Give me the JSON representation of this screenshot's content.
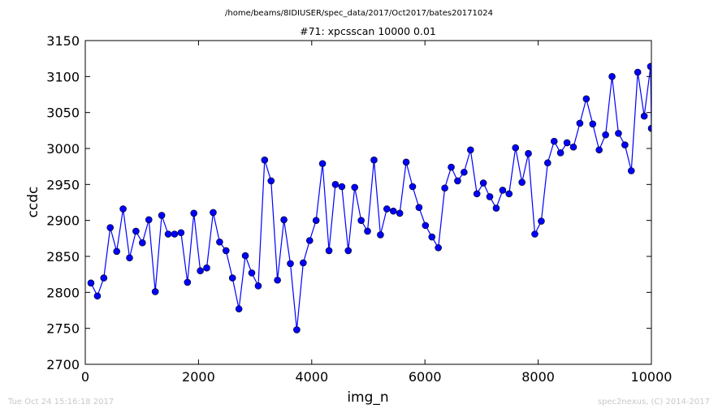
{
  "chart_data": {
    "type": "line",
    "suptitle": "/home/beams/8IDIUSER/spec_data/2017/Oct2017/bates20171024",
    "title": "#71: xpcsscan 10000 0.01",
    "xlabel": "img_n",
    "ylabel": "ccdc",
    "xlim": [
      0,
      10000
    ],
    "ylim": [
      2700,
      3150
    ],
    "xticks": [
      0,
      2000,
      4000,
      6000,
      8000,
      10000
    ],
    "yticks": [
      2700,
      2750,
      2800,
      2850,
      2900,
      2950,
      3000,
      3050,
      3100,
      3150
    ],
    "grid": false,
    "legend": "none",
    "series": [
      {
        "color": "#0000ff",
        "marker": "circle",
        "x": [
          100,
          214,
          327,
          441,
          555,
          668,
          782,
          895,
          1009,
          1123,
          1236,
          1350,
          1464,
          1577,
          1691,
          1805,
          1918,
          2032,
          2145,
          2259,
          2373,
          2486,
          2600,
          2714,
          2827,
          2941,
          3055,
          3168,
          3282,
          3395,
          3509,
          3623,
          3736,
          3850,
          3964,
          4077,
          4191,
          4305,
          4418,
          4532,
          4645,
          4759,
          4873,
          4986,
          5100,
          5214,
          5327,
          5441,
          5555,
          5668,
          5782,
          5895,
          6009,
          6123,
          6236,
          6350,
          6464,
          6577,
          6691,
          6805,
          6918,
          7032,
          7145,
          7259,
          7373,
          7486,
          7600,
          7714,
          7827,
          7941,
          8055,
          8168,
          8282,
          8395,
          8509,
          8623,
          8736,
          8850,
          8964,
          9077,
          9191,
          9305,
          9418,
          9532,
          9645,
          9759,
          9873,
          9986,
          10000
        ],
        "y": [
          2813,
          2795,
          2820,
          2890,
          2857,
          2916,
          2848,
          2885,
          2869,
          2901,
          2801,
          2907,
          2881,
          2881,
          2883,
          2814,
          2910,
          2830,
          2834,
          2911,
          2870,
          2858,
          2820,
          2777,
          2851,
          2827,
          2809,
          2984,
          2955,
          2817,
          2901,
          2840,
          2748,
          2841,
          2872,
          2900,
          2979,
          2858,
          2950,
          2947,
          2858,
          2946,
          2900,
          2885,
          2984,
          2880,
          2916,
          2913,
          2910,
          2981,
          2947,
          2918,
          2893,
          2877,
          2862,
          2945,
          2974,
          2955,
          2967,
          2998,
          2937,
          2952,
          2933,
          2917,
          2942,
          2937,
          3001,
          2953,
          2993,
          2881,
          2899,
          2980,
          3010,
          2994,
          3008,
          3002,
          3035,
          3069,
          3034,
          2998,
          3019,
          3100,
          3021,
          3005,
          2969,
          3106,
          3045,
          3114,
          3028
        ]
      }
    ]
  },
  "footer": {
    "left": "Tue Oct 24 15:16:18 2017",
    "right": "spec2nexus, (C) 2014-2017"
  }
}
